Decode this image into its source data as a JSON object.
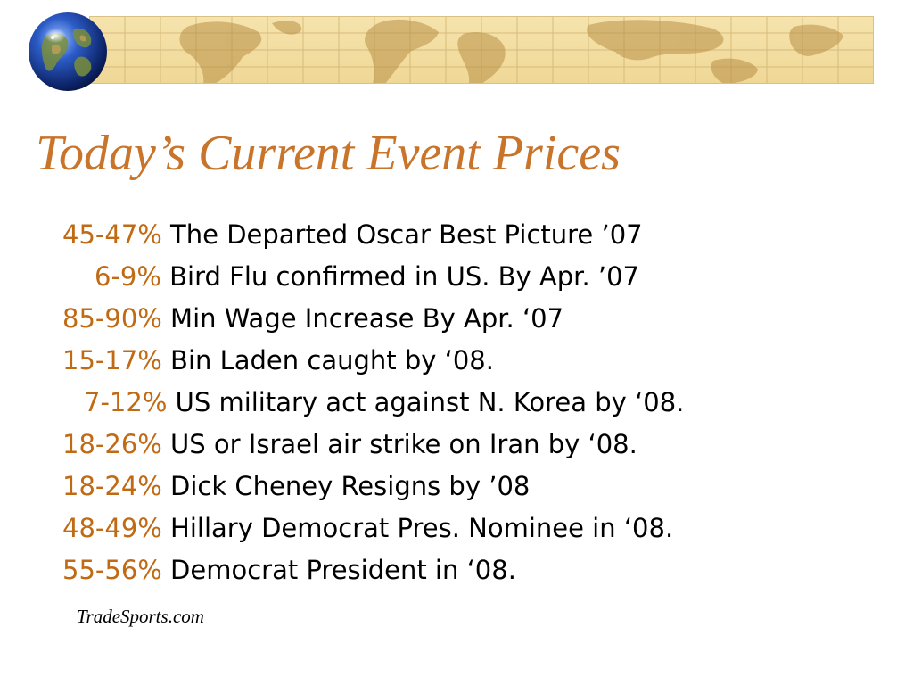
{
  "slide": {
    "title": "Today’s Current Event Prices",
    "source": "TradeSports.com",
    "banner_icon": "world-map",
    "globe_icon": "globe"
  },
  "colors": {
    "title": "#c8742a",
    "percent": "#c06a14",
    "text": "#000000",
    "banner_background": "#f3dd9c",
    "banner_land": "#b88f45"
  },
  "items": [
    {
      "percent": "45-47%",
      "event": "The Departed Oscar Best Picture ’07"
    },
    {
      "percent": "6-9%",
      "event": "Bird Flu confirmed in US. By Apr. ’07"
    },
    {
      "percent": "85-90%",
      "event": "Min Wage Increase By Apr. ‘07"
    },
    {
      "percent": "15-17%",
      "event": "Bin Laden caught by ‘08."
    },
    {
      "percent": "7-12%",
      "event": "US military act against N. Korea by ‘08."
    },
    {
      "percent": "18-26%",
      "event": "US or Israel air strike on Iran by ‘08."
    },
    {
      "percent": "18-24%",
      "event": "Dick Cheney Resigns by ’08"
    },
    {
      "percent": "48-49%",
      "event": "Hillary Democrat Pres. Nominee in ‘08."
    },
    {
      "percent": "55-56%",
      "event": "Democrat President in ‘08."
    }
  ]
}
